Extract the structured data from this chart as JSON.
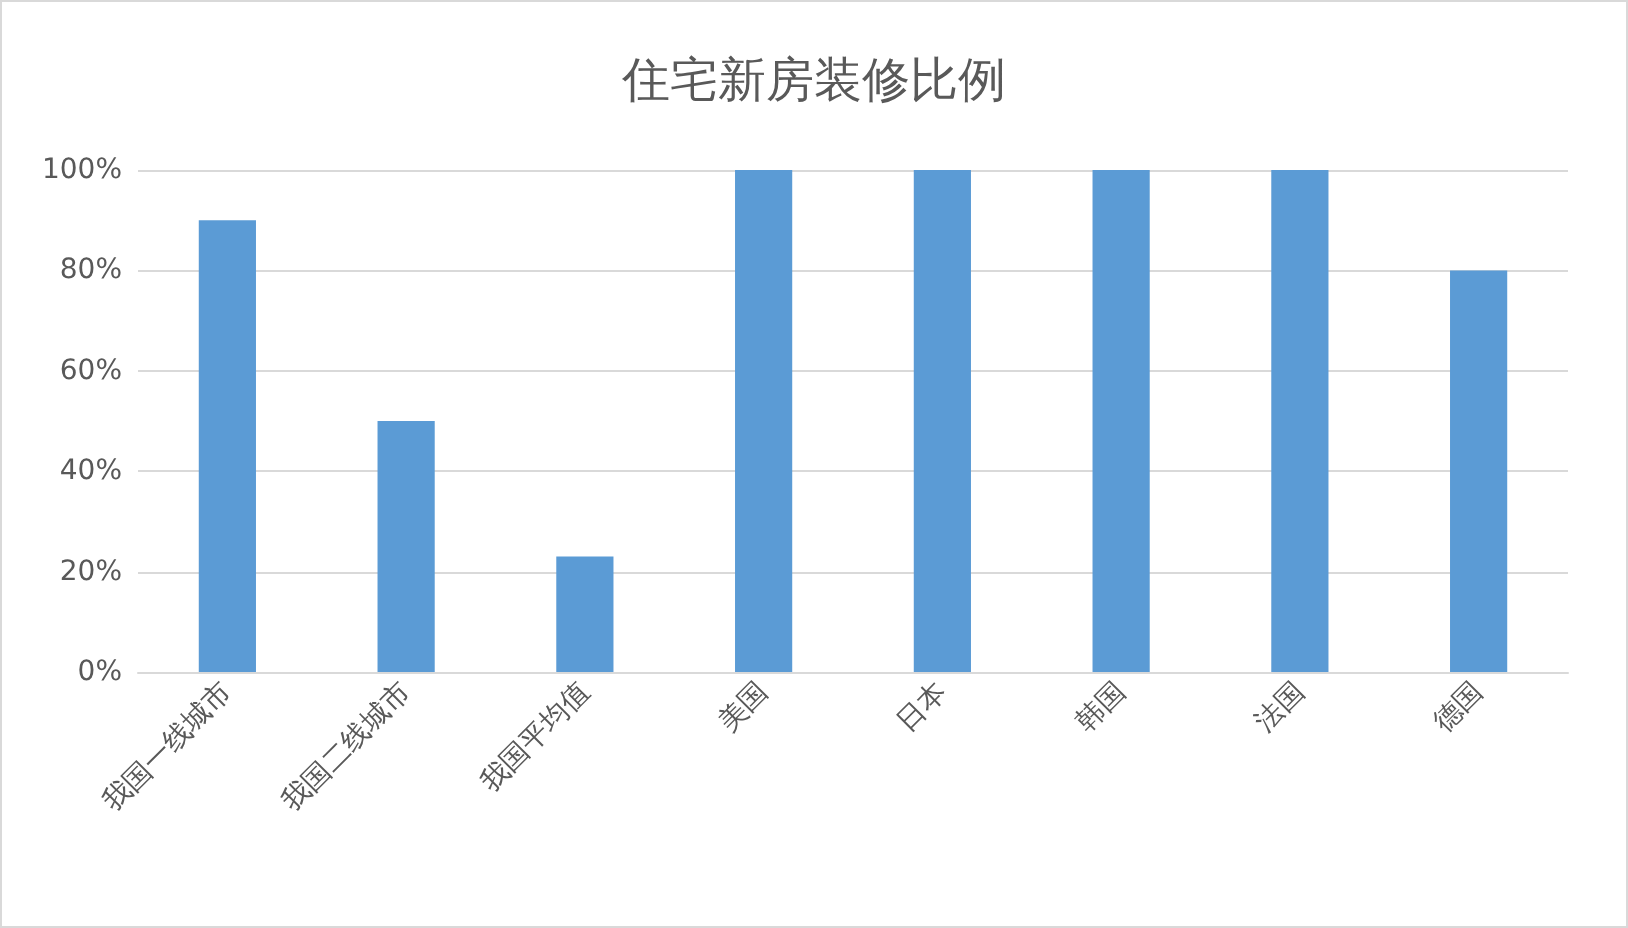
{
  "chart_data": {
    "type": "bar",
    "title": "住宅新房装修比例",
    "categories": [
      "我国一线城市",
      "我国二线城市",
      "我国平均值",
      "美国",
      "日本",
      "韩国",
      "法国",
      "德国"
    ],
    "values": [
      90,
      50,
      23,
      100,
      100,
      100,
      100,
      80
    ],
    "color": "#5b9bd5",
    "ylim": [
      0,
      100
    ],
    "yticks": [
      {
        "value": 0,
        "label": "0%"
      },
      {
        "value": 20,
        "label": "20%"
      },
      {
        "value": 40,
        "label": "40%"
      },
      {
        "value": 60,
        "label": "60%"
      },
      {
        "value": 80,
        "label": "80%"
      },
      {
        "value": 100,
        "label": "100%"
      }
    ],
    "grid": "y"
  }
}
